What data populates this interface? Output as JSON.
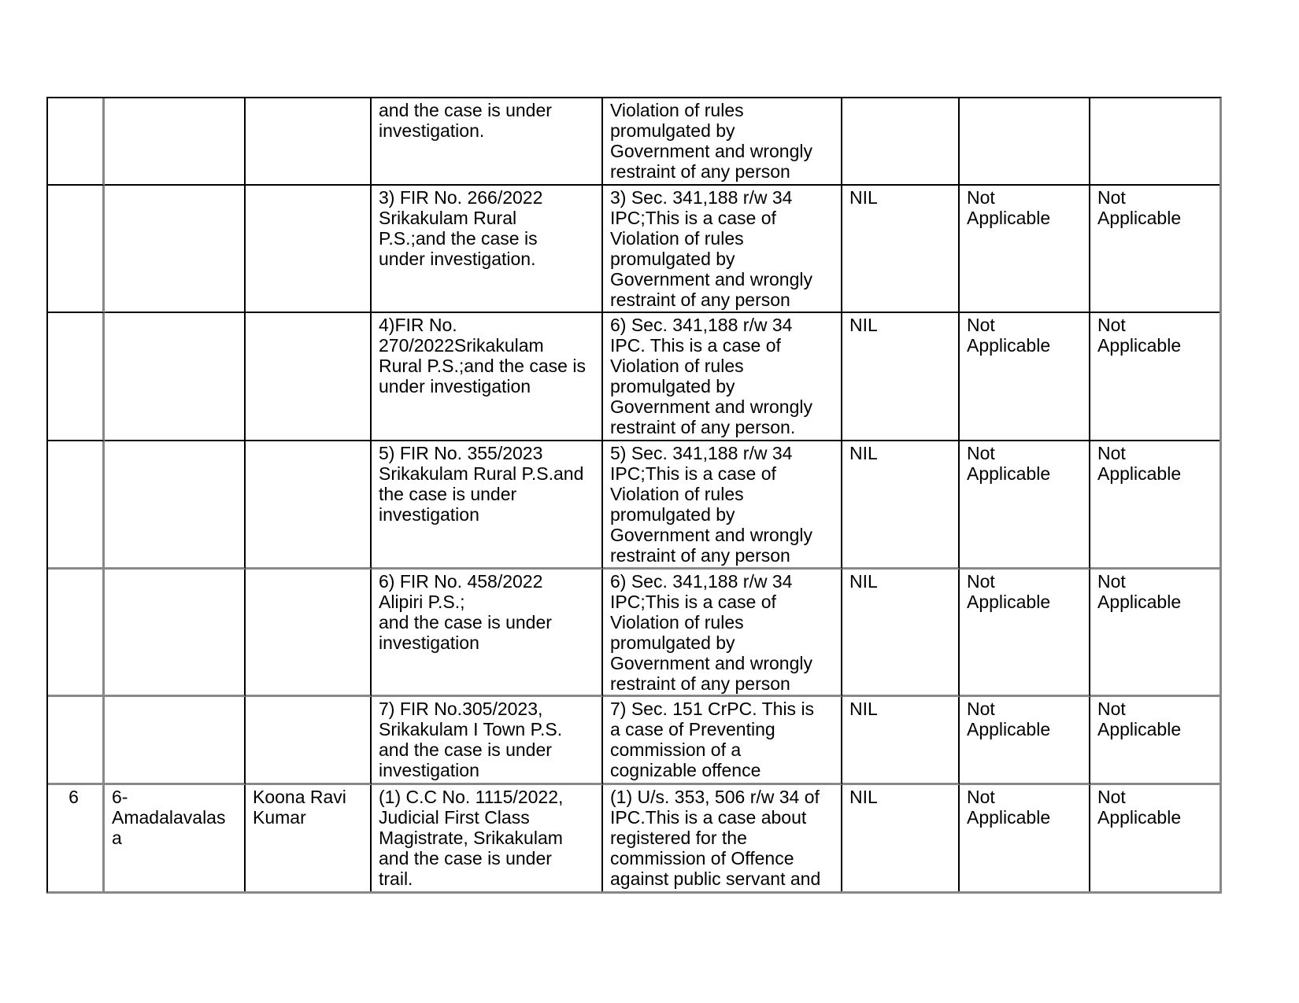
{
  "page": {
    "background": "#ffffff",
    "text_color": "#000000"
  },
  "table": {
    "grid_line_primary": "#000000",
    "grid_line_secondary": "#888888",
    "rows": [
      [
        "",
        "",
        "",
        "and the case is under\ninvestigation.",
        "Violation of rules\npromulgated by\nGovernment and wrongly\nrestraint of any person",
        "",
        "",
        ""
      ],
      [
        "",
        "",
        "",
        "3) FIR No. 266/2022\nSrikakulam Rural\nP.S.;and the case is\nunder investigation.",
        "3) Sec. 341,188 r/w 34\nIPC;This is a case of\nViolation of rules\npromulgated by\nGovernment and wrongly\nrestraint of any person",
        "NIL",
        "Not\nApplicable",
        "Not\nApplicable"
      ],
      [
        "",
        "",
        "",
        "4)FIR No.\n270/2022Srikakulam\nRural P.S.;and the case is\nunder investigation",
        "6) Sec. 341,188 r/w 34\nIPC. This is a case of\nViolation of rules\npromulgated by\nGovernment and wrongly\nrestraint of any person.",
        "NIL",
        "Not\nApplicable",
        "Not\nApplicable"
      ],
      [
        "",
        "",
        "",
        "5) FIR No. 355/2023\nSrikakulam Rural P.S.and\nthe case is under\ninvestigation",
        "5) Sec. 341,188 r/w 34\nIPC;This is a case of\nViolation of rules\npromulgated by\nGovernment and wrongly\nrestraint of any person",
        "NIL",
        "Not\nApplicable",
        "Not\nApplicable"
      ],
      [
        "",
        "",
        "",
        "6) FIR No. 458/2022\nAlipiri P.S.;\nand the case is under\ninvestigation",
        "6) Sec. 341,188 r/w 34\nIPC;This is a case of\nViolation of rules\npromulgated by\nGovernment and wrongly\nrestraint of any person",
        "NIL",
        "Not\nApplicable",
        "Not\nApplicable"
      ],
      [
        "",
        "",
        "",
        "7) FIR No.305/2023,\nSrikakulam I Town P.S.\nand the case is under\ninvestigation",
        "7) Sec. 151 CrPC. This is\na case of Preventing\ncommission of a\ncognizable offence",
        "NIL",
        "Not\nApplicable",
        "Not\nApplicable"
      ],
      [
        "6",
        "6-\nAmadalavalas\na",
        "Koona Ravi\nKumar",
        "(1) C.C No. 1115/2022,\nJudicial First Class\nMagistrate, Srikakulam\nand the case is under\ntrail.",
        "(1) U/s. 353, 506 r/w 34 of\nIPC.This is a case about\nregistered for the\ncommission of Offence\nagainst public servant and",
        "NIL",
        "Not\nApplicable",
        "Not\nApplicable"
      ]
    ]
  }
}
